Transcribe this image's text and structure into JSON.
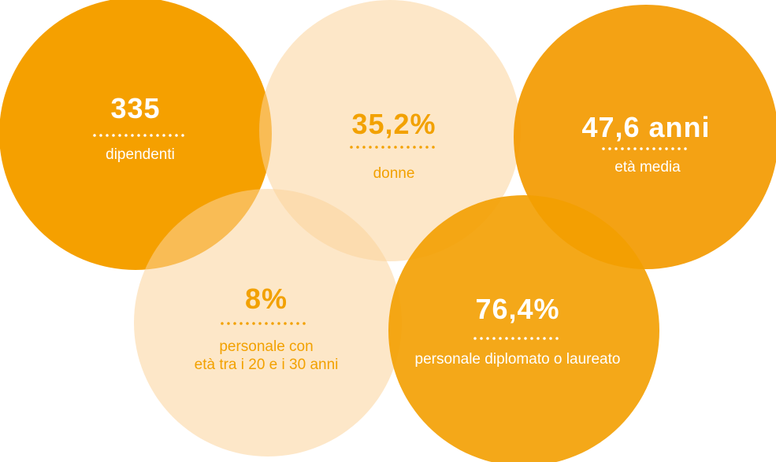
{
  "circles": [
    {
      "value": "335",
      "label_lines": [
        "dipendenti"
      ]
    },
    {
      "value": "35,2%",
      "label_lines": [
        "donne"
      ]
    },
    {
      "value": "47,6 anni",
      "label_lines": [
        "età media"
      ]
    },
    {
      "value": "8%",
      "label_lines": [
        "personale con",
        "età tra i 20 e i 30 anni"
      ]
    },
    {
      "value": "76,4%",
      "label_lines": [
        "personale diplomato o laureato"
      ]
    }
  ]
}
